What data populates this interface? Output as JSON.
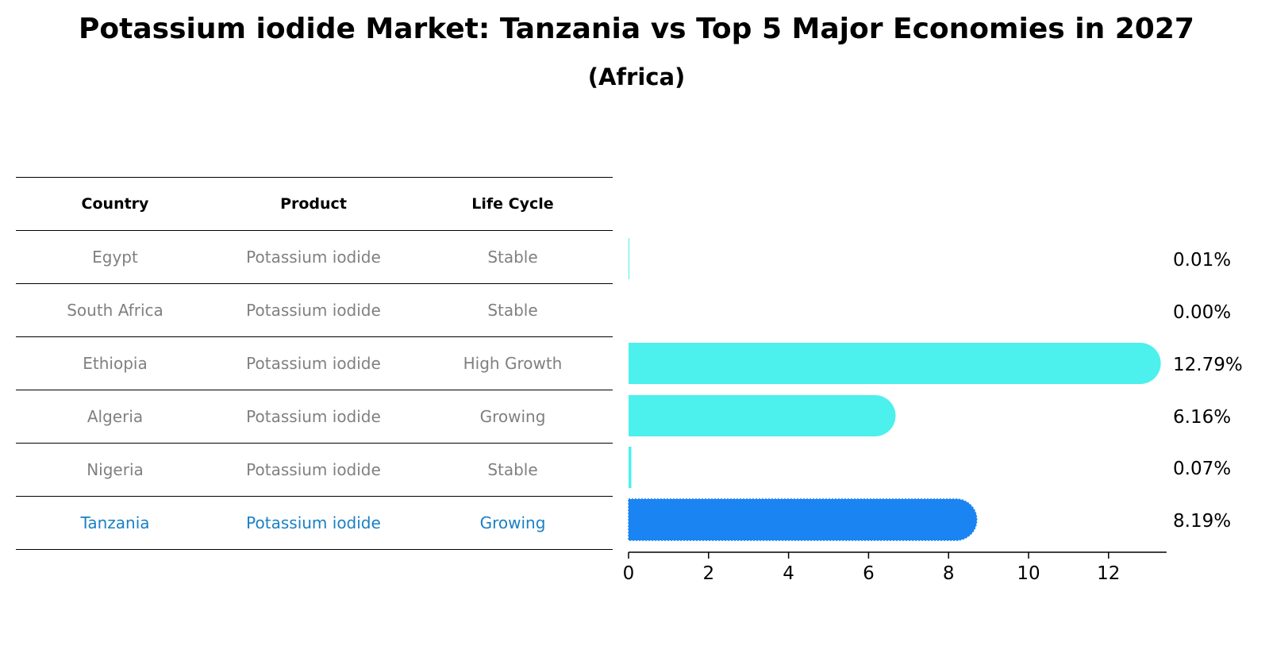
{
  "title": "Potassium iodide Market: Tanzania vs Top 5 Major Economies in 2027",
  "subtitle": "(Africa)",
  "table": {
    "headers": [
      "Country",
      "Product",
      "Life Cycle"
    ],
    "rows": [
      {
        "country": "Egypt",
        "product": "Potassium iodide",
        "life_cycle": "Stable"
      },
      {
        "country": "South Africa",
        "product": "Potassium iodide",
        "life_cycle": "Stable"
      },
      {
        "country": "Ethiopia",
        "product": "Potassium iodide",
        "life_cycle": "High Growth"
      },
      {
        "country": "Algeria",
        "product": "Potassium iodide",
        "life_cycle": "Growing"
      },
      {
        "country": "Nigeria",
        "product": "Potassium iodide",
        "life_cycle": "Stable"
      },
      {
        "country": "Tanzania",
        "product": "Potassium iodide",
        "life_cycle": "Growing"
      }
    ]
  },
  "chart_data": {
    "type": "bar",
    "orientation": "horizontal",
    "categories": [
      "Egypt",
      "South Africa",
      "Ethiopia",
      "Algeria",
      "Nigeria",
      "Tanzania"
    ],
    "values": [
      0.01,
      0.0,
      12.79,
      6.16,
      0.07,
      8.19
    ],
    "value_labels": [
      "0.01%",
      "0.00%",
      "12.79%",
      "6.16%",
      "0.07%",
      "8.19%"
    ],
    "highlight": "Tanzania",
    "xticks": [
      0,
      2,
      4,
      6,
      8,
      10,
      12
    ],
    "xlim": [
      0,
      13.45
    ],
    "xlabel": "",
    "ylabel": "",
    "colors": {
      "default": "#4cf0ec",
      "highlight": "#1a84f2",
      "highlight_text": "#1a80c4"
    }
  }
}
